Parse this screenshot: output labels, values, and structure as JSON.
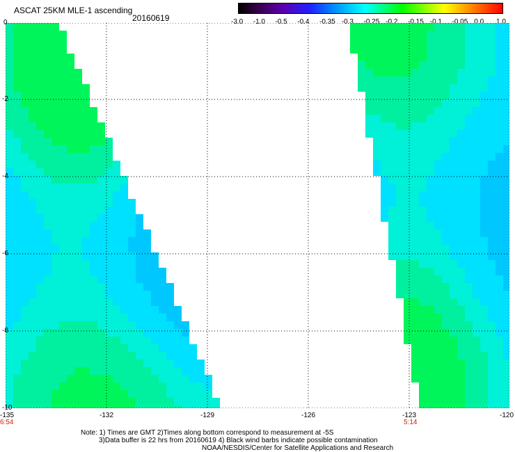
{
  "header": {
    "title": "ASCAT 25KM MLE-1 ascending",
    "date": "20160619"
  },
  "colorbar": {
    "ticks": [
      "-3.0",
      "-1.0",
      "-0.5",
      "-0.4",
      "-0.35",
      "-0.3",
      "-0.25",
      "-0.2",
      "-0.15",
      "-0.1",
      "-0.05",
      "0.0",
      "1.0"
    ],
    "colors": [
      "#000000",
      "#3a0050",
      "#5a00b0",
      "#2020ff",
      "#0080ff",
      "#00c8ff",
      "#00ffff",
      "#00ff80",
      "#00ff00",
      "#80ff00",
      "#ffff00",
      "#ffa000",
      "#ff0000"
    ]
  },
  "axes": {
    "y_ticks": [
      "0",
      "-2",
      "-4",
      "-6",
      "-8",
      "-10"
    ],
    "x_ticks": [
      "-135",
      "-132",
      "-129",
      "-126",
      "-123",
      "-120"
    ],
    "time_labels": [
      {
        "lon": "-135",
        "time": "6:54"
      },
      {
        "lon": "-123",
        "time": "5:14"
      }
    ]
  },
  "footer": {
    "note_line1": "Note: 1) Times are GMT 2)Times along bottom correspond to measurement at -5S",
    "note_line2": "3)Data buffer is 22 hrs from 20160619 4) Black wind barbs indicate possible contamination",
    "note_line3": "NOAA/NESDIS/Center for Satellite Applications and Research"
  },
  "map": {
    "lon_range": [
      -135,
      -120
    ],
    "lat_range": [
      0,
      -10
    ]
  }
}
